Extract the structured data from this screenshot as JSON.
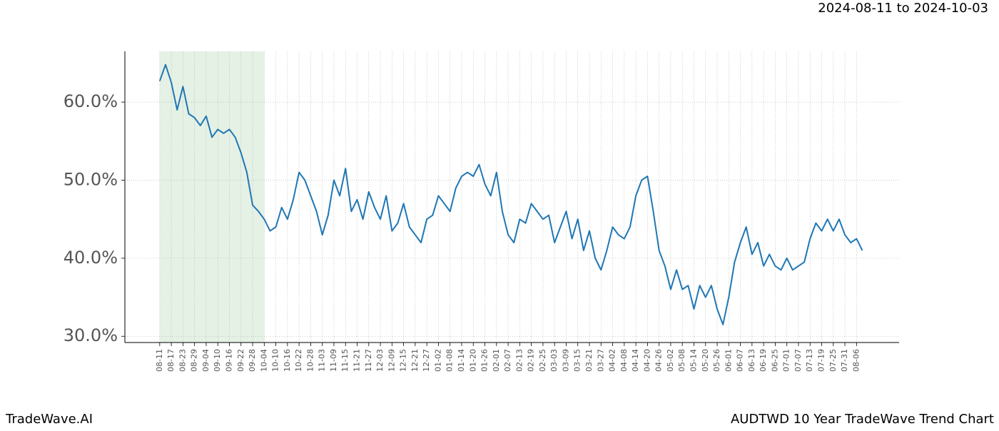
{
  "chart_data": {
    "type": "line",
    "title": "AUDTWD 10 Year TradeWave Trend Chart",
    "brand": "TradeWave.AI",
    "date_range": "2024-08-11 to 2024-10-03",
    "color": "#1f77b4",
    "shade_color": "#e5f1e5",
    "shade": [
      0,
      54
    ],
    "grid": true,
    "xlim": [
      -18,
      382
    ],
    "ylim": [
      29.2,
      66.5
    ],
    "yticks": [
      {
        "value": 30,
        "label": "30.0%"
      },
      {
        "value": 40,
        "label": "40.0%"
      },
      {
        "value": 50,
        "label": "50.0%"
      },
      {
        "value": 60,
        "label": "60.0%"
      }
    ],
    "xticks": [
      {
        "value": 0,
        "label": "08-11"
      },
      {
        "value": 6,
        "label": "08-17"
      },
      {
        "value": 12,
        "label": "08-23"
      },
      {
        "value": 18,
        "label": "08-29"
      },
      {
        "value": 24,
        "label": "09-04"
      },
      {
        "value": 30,
        "label": "09-10"
      },
      {
        "value": 36,
        "label": "09-16"
      },
      {
        "value": 42,
        "label": "09-22"
      },
      {
        "value": 48,
        "label": "09-28"
      },
      {
        "value": 54,
        "label": "10-04"
      },
      {
        "value": 60,
        "label": "10-10"
      },
      {
        "value": 66,
        "label": "10-16"
      },
      {
        "value": 72,
        "label": "10-22"
      },
      {
        "value": 78,
        "label": "10-28"
      },
      {
        "value": 84,
        "label": "11-03"
      },
      {
        "value": 90,
        "label": "11-09"
      },
      {
        "value": 96,
        "label": "11-15"
      },
      {
        "value": 102,
        "label": "11-21"
      },
      {
        "value": 108,
        "label": "11-27"
      },
      {
        "value": 114,
        "label": "12-03"
      },
      {
        "value": 120,
        "label": "12-09"
      },
      {
        "value": 126,
        "label": "12-15"
      },
      {
        "value": 132,
        "label": "12-21"
      },
      {
        "value": 138,
        "label": "12-27"
      },
      {
        "value": 144,
        "label": "01-02"
      },
      {
        "value": 150,
        "label": "01-08"
      },
      {
        "value": 156,
        "label": "01-14"
      },
      {
        "value": 162,
        "label": "01-20"
      },
      {
        "value": 168,
        "label": "01-26"
      },
      {
        "value": 174,
        "label": "02-01"
      },
      {
        "value": 180,
        "label": "02-07"
      },
      {
        "value": 186,
        "label": "02-13"
      },
      {
        "value": 192,
        "label": "02-19"
      },
      {
        "value": 198,
        "label": "02-25"
      },
      {
        "value": 204,
        "label": "03-03"
      },
      {
        "value": 210,
        "label": "03-09"
      },
      {
        "value": 216,
        "label": "03-15"
      },
      {
        "value": 222,
        "label": "03-21"
      },
      {
        "value": 228,
        "label": "03-27"
      },
      {
        "value": 234,
        "label": "04-02"
      },
      {
        "value": 240,
        "label": "04-08"
      },
      {
        "value": 246,
        "label": "04-14"
      },
      {
        "value": 252,
        "label": "04-20"
      },
      {
        "value": 258,
        "label": "04-26"
      },
      {
        "value": 264,
        "label": "05-02"
      },
      {
        "value": 270,
        "label": "05-08"
      },
      {
        "value": 276,
        "label": "05-14"
      },
      {
        "value": 282,
        "label": "05-20"
      },
      {
        "value": 288,
        "label": "05-26"
      },
      {
        "value": 294,
        "label": "06-01"
      },
      {
        "value": 300,
        "label": "06-07"
      },
      {
        "value": 306,
        "label": "06-13"
      },
      {
        "value": 312,
        "label": "06-19"
      },
      {
        "value": 318,
        "label": "06-25"
      },
      {
        "value": 324,
        "label": "07-01"
      },
      {
        "value": 330,
        "label": "07-07"
      },
      {
        "value": 336,
        "label": "07-13"
      },
      {
        "value": 342,
        "label": "07-19"
      },
      {
        "value": 348,
        "label": "07-25"
      },
      {
        "value": 354,
        "label": "07-31"
      },
      {
        "value": 360,
        "label": "08-06"
      }
    ],
    "x": [
      0,
      3,
      6,
      9,
      12,
      15,
      18,
      21,
      24,
      27,
      30,
      33,
      36,
      39,
      42,
      45,
      48,
      51,
      54,
      57,
      60,
      63,
      66,
      69,
      72,
      75,
      78,
      81,
      84,
      87,
      90,
      93,
      96,
      99,
      102,
      105,
      108,
      111,
      114,
      117,
      120,
      123,
      126,
      129,
      132,
      135,
      138,
      141,
      144,
      147,
      150,
      153,
      156,
      159,
      162,
      165,
      168,
      171,
      174,
      177,
      180,
      183,
      186,
      189,
      192,
      195,
      198,
      201,
      204,
      207,
      210,
      213,
      216,
      219,
      222,
      225,
      228,
      231,
      234,
      237,
      240,
      243,
      246,
      249,
      252,
      255,
      258,
      261,
      264,
      267,
      270,
      273,
      276,
      279,
      282,
      285,
      288,
      291,
      294,
      297,
      300,
      303,
      306,
      309,
      312,
      315,
      318,
      321,
      324,
      327,
      330,
      333,
      336,
      339,
      342,
      345,
      348,
      351,
      354,
      357,
      360,
      363
    ],
    "values": [
      62.7,
      64.8,
      62.5,
      59,
      62,
      58.5,
      58,
      57,
      58.2,
      55.5,
      56.5,
      56,
      56.5,
      55.5,
      53.5,
      51,
      46.8,
      46,
      45,
      43.5,
      44,
      46.5,
      45,
      47.5,
      51,
      50,
      48,
      46,
      43,
      45.5,
      50,
      48,
      51.5,
      46,
      47.5,
      45,
      48.5,
      46.5,
      45,
      48,
      43.5,
      44.5,
      47,
      44,
      43,
      42,
      45,
      45.5,
      48,
      47,
      46,
      49,
      50.5,
      51,
      50.5,
      52,
      49.5,
      48,
      51,
      46,
      43,
      42,
      45,
      44.5,
      47,
      46,
      45,
      45.5,
      42,
      44,
      46,
      42.5,
      45,
      41,
      43.5,
      40,
      38.5,
      41,
      44,
      43,
      42.5,
      44,
      48,
      50,
      50.5,
      46,
      41,
      39,
      36,
      38.5,
      36,
      36.5,
      33.5,
      36.5,
      35,
      36.5,
      33.5,
      31.5,
      35,
      39.5,
      42,
      44,
      40.5,
      42,
      39,
      40.5,
      39,
      38.5,
      40,
      38.5,
      39,
      39.5,
      42.5,
      44.5,
      43.5,
      45,
      43.5,
      45,
      43,
      42,
      42.5,
      41
    ]
  }
}
